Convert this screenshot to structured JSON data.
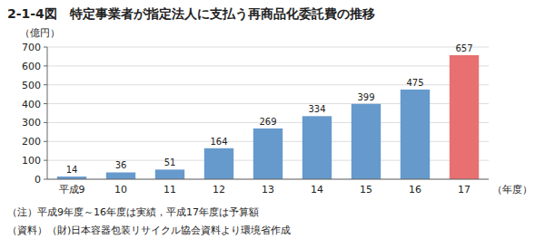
{
  "chart_data": {
    "type": "bar",
    "title": "2-1-4図　特定事業者が指定法人に支払う再商品化委託費の推移",
    "ylabel": "（億円）",
    "xlabel": "（年度）",
    "annotations": [
      "（注）平成9年度～16年度は実績，平成17年度は予算額",
      "（資料）（財)日本容器包装リサイクル協会資料より環境省作成"
    ],
    "categories": [
      "平成9",
      "10",
      "11",
      "12",
      "13",
      "14",
      "15",
      "16",
      "17"
    ],
    "values": [
      14,
      36,
      51,
      164,
      269,
      334,
      399,
      475,
      657
    ],
    "colors": [
      "#6699cc",
      "#6699cc",
      "#6699cc",
      "#6699cc",
      "#6699cc",
      "#6699cc",
      "#6699cc",
      "#6699cc",
      "#e87070"
    ],
    "ylim": [
      0,
      700
    ],
    "yticks": [
      0,
      100,
      200,
      300,
      400,
      500,
      600,
      700
    ],
    "grid": true,
    "data_labels": true
  }
}
